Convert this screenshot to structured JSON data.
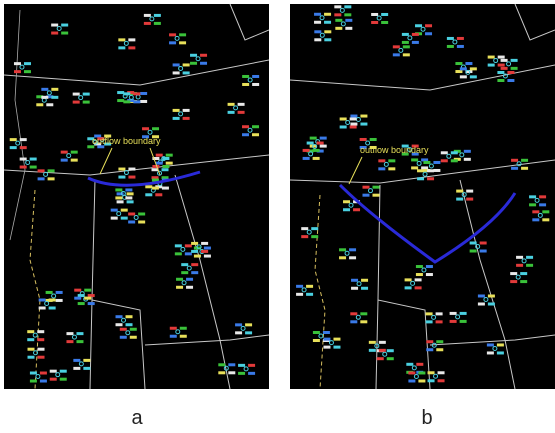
{
  "panels": [
    {
      "label": "a",
      "annotation": "outflow boundary"
    },
    {
      "label": "b",
      "annotation": "outflow boundary"
    }
  ]
}
